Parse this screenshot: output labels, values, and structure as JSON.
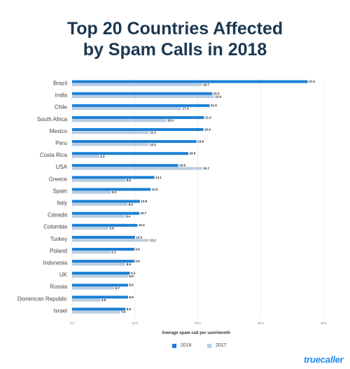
{
  "chart_data": {
    "type": "bar",
    "orientation": "horizontal",
    "title_lines": [
      "Top 20 Countries Affected",
      "by Spam Calls in 2018"
    ],
    "xlabel": "Average spam call per user/month",
    "ylabel": "",
    "xlim": [
      0,
      40
    ],
    "x_ticks": [
      "0.0",
      "10.0",
      "20.0",
      "30.0",
      "40.0"
    ],
    "grid": true,
    "legend_position": "bottom",
    "categories": [
      "Brazil",
      "India",
      "Chile",
      "South Africa",
      "Mexico",
      "Peru",
      "Costa Rica",
      "USA",
      "Greece",
      "Spain",
      "Italy",
      "Canada",
      "Colombia",
      "Turkey",
      "Poland",
      "Indonesia",
      "UK",
      "Russia",
      "Dominican Republic",
      "Israel"
    ],
    "series": [
      {
        "name": "2018",
        "color": "#1a7fd4",
        "values": [
          37.5,
          22.3,
          21.9,
          21.0,
          20.9,
          19.8,
          18.5,
          16.9,
          13.1,
          12.5,
          10.8,
          10.7,
          10.4,
          10.0,
          9.9,
          9.9,
          9.2,
          8.9,
          8.9,
          8.5
        ],
        "value_labels": [
          "37.5",
          "22.3",
          "21.9",
          "21.0",
          "20.9",
          "19.8",
          "18.5",
          "16.9",
          "13.1",
          "12.5",
          "10.8",
          "10.7",
          "10.4",
          "10.0",
          "9.9",
          "9.9",
          "9.2",
          "8.9",
          "8.9",
          "8.5"
        ]
      },
      {
        "name": "2017",
        "color": "#b8cde0",
        "values": [
          20.7,
          22.6,
          17.4,
          15.0,
          12.2,
          12.2,
          4.3,
          20.7,
          8.5,
          6.2,
          8.8,
          8.4,
          5.8,
          12.2,
          6.1,
          8.5,
          8.9,
          6.7,
          4.5,
          7.6
        ],
        "value_labels": [
          "20.7",
          "22.6",
          "17.4",
          "15.0",
          "12.2",
          "12.2",
          "4.3",
          "20.7",
          "8.5",
          "6.2",
          "8.8",
          "8.4",
          "5.8",
          "12.2",
          "6.1",
          "8.5",
          "8.9",
          "6.7",
          "4.5",
          "7.6"
        ]
      }
    ]
  },
  "brand": {
    "name": "truecaller",
    "color": "#1a8cf0"
  }
}
